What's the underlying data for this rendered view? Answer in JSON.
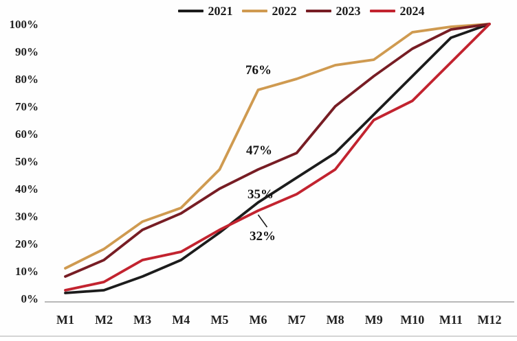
{
  "chart_data": {
    "type": "line",
    "title": "",
    "xlabel": "",
    "ylabel": "",
    "categories": [
      "M1",
      "M2",
      "M3",
      "M4",
      "M5",
      "M6",
      "M7",
      "M8",
      "M9",
      "M10",
      "M11",
      "M12"
    ],
    "y_tick_labels": [
      "0%",
      "10%",
      "20%",
      "30%",
      "40%",
      "50%",
      "60%",
      "70%",
      "80%",
      "90%",
      "100%"
    ],
    "ylim": [
      0,
      100
    ],
    "grid": false,
    "legend_position": "top-center",
    "series": [
      {
        "name": "2021",
        "color": "#1c1c1c",
        "values": [
          2,
          3,
          8,
          14,
          24,
          35,
          44,
          53,
          67,
          81,
          95,
          100
        ]
      },
      {
        "name": "2022",
        "color": "#cf9a50",
        "values": [
          11,
          18,
          28,
          33,
          47,
          76,
          80,
          85,
          87,
          97,
          99,
          100
        ]
      },
      {
        "name": "2023",
        "color": "#771d24",
        "values": [
          8,
          14,
          25,
          31,
          40,
          47,
          53,
          70,
          81,
          91,
          98,
          100
        ]
      },
      {
        "name": "2024",
        "color": "#c2232f",
        "values": [
          3,
          6,
          14,
          17,
          25,
          32,
          38,
          47,
          65,
          72,
          86,
          100
        ]
      }
    ],
    "annotations": [
      {
        "text": "76%",
        "series": "2022",
        "category": "M6",
        "value": 76
      },
      {
        "text": "47%",
        "series": "2023",
        "category": "M6",
        "value": 47
      },
      {
        "text": "35%",
        "series": "2021",
        "category": "M6",
        "value": 35
      },
      {
        "text": "32%",
        "series": "2024",
        "category": "M6",
        "value": 32
      }
    ],
    "axis_color": "#a0a0a0"
  }
}
